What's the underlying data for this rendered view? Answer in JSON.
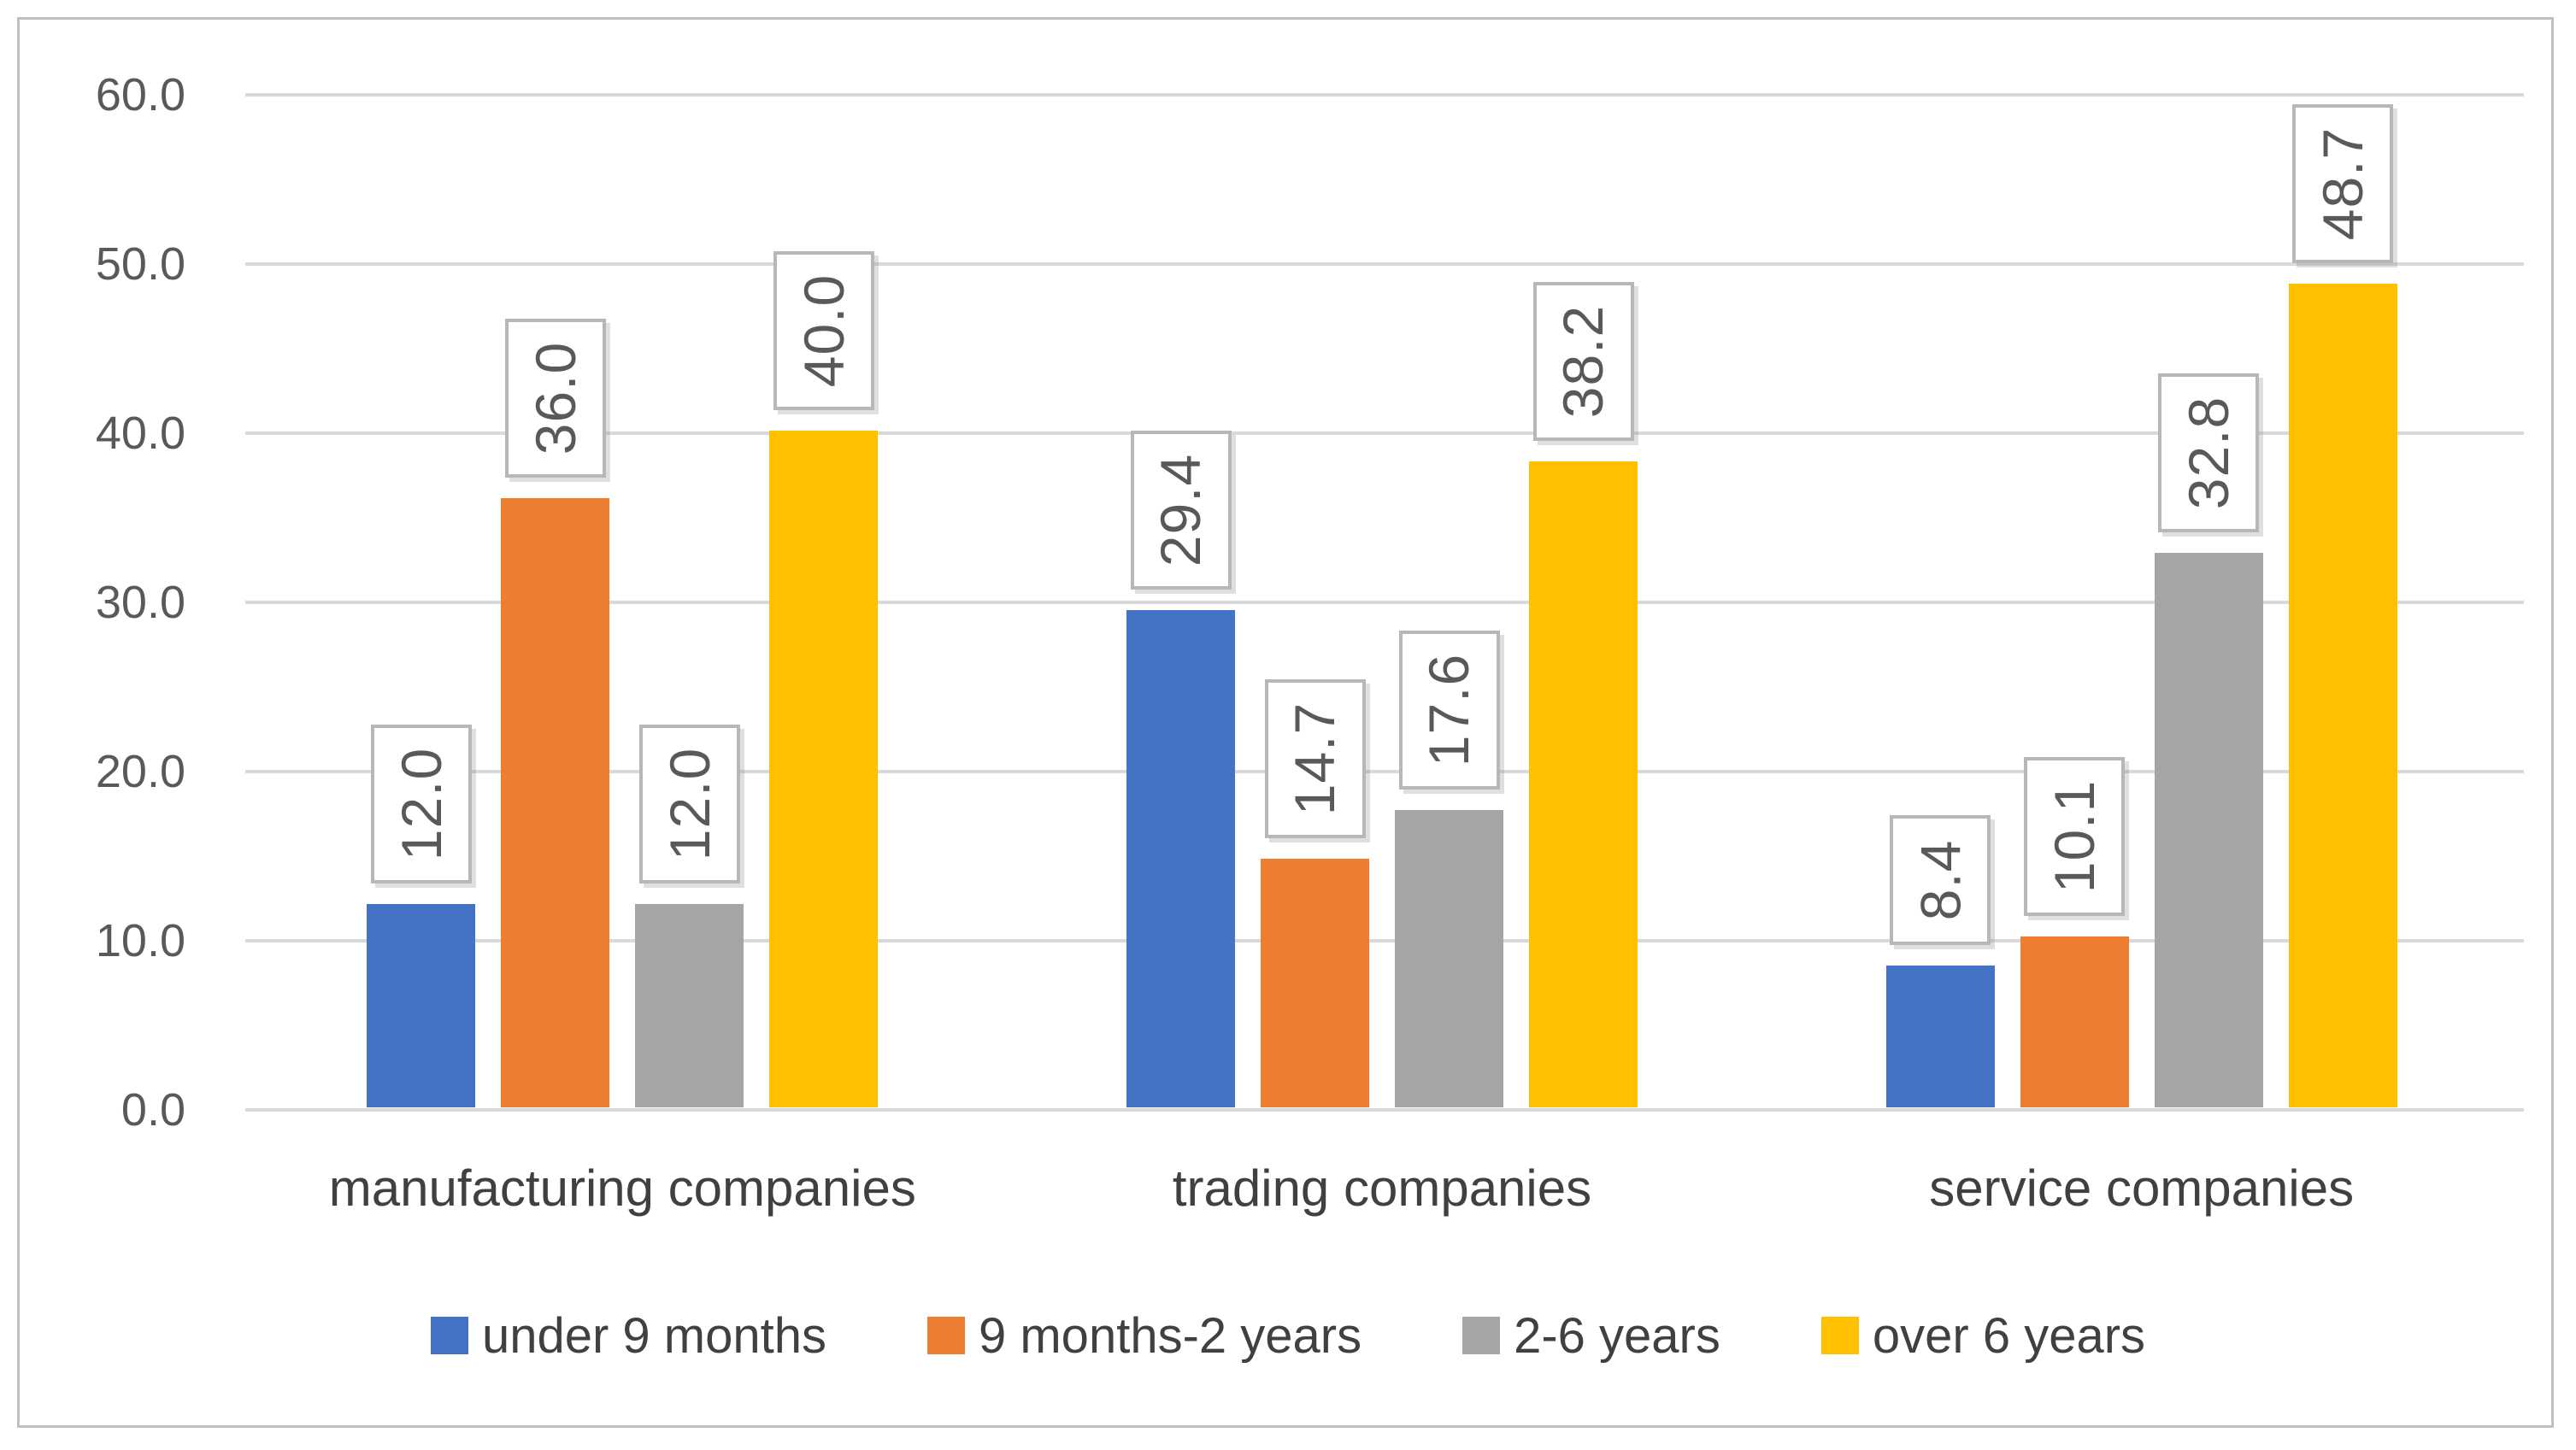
{
  "chart_data": {
    "type": "bar",
    "title": "",
    "categories": [
      "manufacturing companies",
      "trading companies",
      "service companies"
    ],
    "series": [
      {
        "name": "under 9 months",
        "color": "#4472C4",
        "values": [
          12.0,
          29.4,
          8.4
        ]
      },
      {
        "name": "9 months-2 years",
        "color": "#ED7D31",
        "values": [
          36.0,
          14.7,
          10.1
        ]
      },
      {
        "name": "2-6 years",
        "color": "#A5A5A5",
        "values": [
          12.0,
          17.6,
          32.8
        ]
      },
      {
        "name": "over 6 years",
        "color": "#FFC000",
        "values": [
          40.0,
          38.2,
          48.7
        ]
      }
    ],
    "data_labels": [
      [
        "12.0",
        "29.4",
        "8.4"
      ],
      [
        "36.0",
        "14.7",
        "10.1"
      ],
      [
        "12.0",
        "17.6",
        "32.8"
      ],
      [
        "40.0",
        "38.2",
        "48.7"
      ]
    ],
    "xlabel": "",
    "ylabel": "",
    "y_axis": {
      "min": 0,
      "max": 60,
      "step": 10,
      "tick_labels": [
        "0.0",
        "10.0",
        "20.0",
        "30.0",
        "40.0",
        "50.0",
        "60.0"
      ]
    },
    "grid": true,
    "legend_position": "bottom",
    "colors": {
      "gridline": "#d9d9d9",
      "frame_border": "#bfbfbf",
      "axis_text": "#595959",
      "category_text": "#404040",
      "legend_text": "#404040",
      "data_label_text": "#595959",
      "data_label_box_border": "#b7b7b7",
      "data_label_box_bg": "#ffffff",
      "background": "#ffffff"
    }
  }
}
